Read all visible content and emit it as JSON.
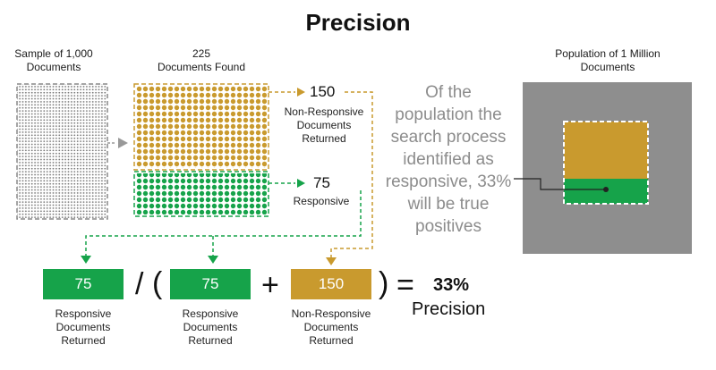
{
  "title": "Precision",
  "sample": {
    "heading_line1": "Sample of 1,000",
    "heading_line2": "Documents"
  },
  "found": {
    "heading_line1": "225",
    "heading_line2": "Documents Found"
  },
  "non_responsive": {
    "count": "150",
    "label_line1": "Non-Responsive",
    "label_line2": "Documents",
    "label_line3": "Returned"
  },
  "responsive": {
    "count": "75",
    "label": "Responsive"
  },
  "explanation": {
    "line1": "Of the",
    "line2": "population the",
    "line3": "search process",
    "line4": "identified as",
    "line5": "responsive, 33%",
    "line6": "will be true",
    "line7": "positives"
  },
  "population": {
    "heading_line1": "Population of 1 Million",
    "heading_line2": "Documents"
  },
  "formula": {
    "term1": {
      "value": "75",
      "label_line1": "Responsive",
      "label_line2": "Documents",
      "label_line3": "Returned"
    },
    "divide": "/",
    "open_paren": "(",
    "term2": {
      "value": "75",
      "label_line1": "Responsive",
      "label_line2": "Documents",
      "label_line3": "Returned"
    },
    "plus": "+",
    "term3": {
      "value": "150",
      "label_line1": "Non-Responsive",
      "label_line2": "Documents",
      "label_line3": "Returned"
    },
    "close_paren": ")",
    "equals": "=",
    "result": "33%",
    "result_label": "Precision"
  },
  "colors": {
    "green": "#16a34a",
    "gold": "#c99a2e",
    "gray_panel": "#8e8e8e",
    "sample_dots": "#777777"
  }
}
